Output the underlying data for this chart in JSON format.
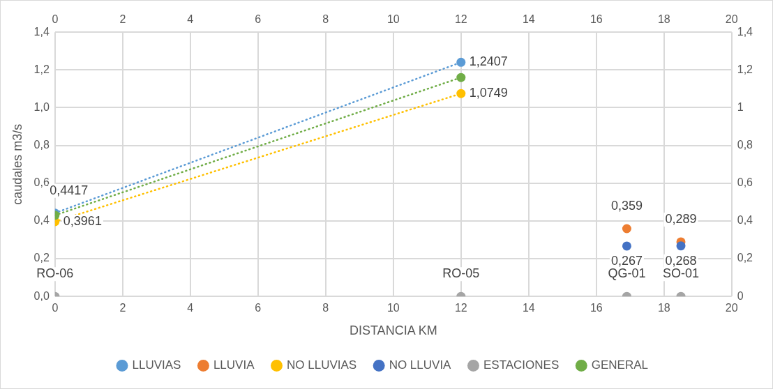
{
  "chart_data": {
    "type": "scatter",
    "xlabel": "DISTANCIA KM",
    "ylabel": "caudales m3/s",
    "xlim": [
      0,
      20
    ],
    "xticks": [
      0,
      2,
      4,
      6,
      8,
      10,
      12,
      14,
      16,
      18,
      20
    ],
    "x2lim": [
      0,
      20
    ],
    "x2ticks": [
      0,
      2,
      4,
      6,
      8,
      10,
      12,
      14,
      16,
      18,
      20
    ],
    "ylim": [
      0,
      1.4
    ],
    "yticks": [
      {
        "value": 0,
        "label": "0,0"
      },
      {
        "value": 0.2,
        "label": "0,2"
      },
      {
        "value": 0.4,
        "label": "0,4"
      },
      {
        "value": 0.6,
        "label": "0,6"
      },
      {
        "value": 0.8,
        "label": "0,8"
      },
      {
        "value": 1.0,
        "label": "1,0"
      },
      {
        "value": 1.2,
        "label": "1,2"
      },
      {
        "value": 1.4,
        "label": "1,4"
      }
    ],
    "y2lim": [
      0,
      1.4
    ],
    "y2ticks": [
      0,
      {
        "value": 0.2,
        "label": "0,2"
      },
      {
        "value": 0.4,
        "label": "0,4"
      },
      {
        "value": 0.6,
        "label": "0,6"
      },
      {
        "value": 0.8,
        "label": "0,8"
      },
      1,
      {
        "value": 1.2,
        "label": "1,2"
      },
      {
        "value": 1.4,
        "label": "1,4"
      }
    ],
    "grid": true,
    "legend": "bottom",
    "marker": "circle",
    "series": [
      {
        "name": "LLUVIAS",
        "type": "line",
        "line_style": "dotted",
        "color": "#5b9bd5",
        "x": [
          0,
          12
        ],
        "values": [
          0.4417,
          1.2407
        ],
        "value_labels": [
          "0,4417",
          "1,2407"
        ]
      },
      {
        "name": "LLUVIA",
        "color": "#ed7d31",
        "x": [
          16.9,
          18.5
        ],
        "values": [
          0.359,
          0.289
        ],
        "value_labels": [
          "0,359",
          "0,289"
        ]
      },
      {
        "name": "NO LLUVIAS",
        "type": "line",
        "line_style": "dotted",
        "color": "#ffc000",
        "x": [
          0,
          12
        ],
        "values": [
          0.3961,
          1.0749
        ],
        "value_labels": [
          "0,3961",
          "1,0749"
        ]
      },
      {
        "name": "NO LLUVIA",
        "color": "#4472c4",
        "x": [
          16.9,
          18.5
        ],
        "values": [
          0.267,
          0.268
        ],
        "value_labels": [
          "0,267",
          "0,268"
        ]
      },
      {
        "name": "ESTACIONES",
        "color": "#a5a5a5",
        "x": [
          0,
          12,
          16.9,
          18.5
        ],
        "values": [
          0,
          0,
          0,
          0
        ],
        "value_labels": [
          "RO-06",
          "RO-05",
          "QG-01",
          "SO-01"
        ]
      },
      {
        "name": "GENERAL",
        "type": "line",
        "line_style": "dotted",
        "color": "#70ad47",
        "x": [
          0,
          12
        ],
        "values": [
          0.43,
          1.16
        ]
      }
    ]
  }
}
